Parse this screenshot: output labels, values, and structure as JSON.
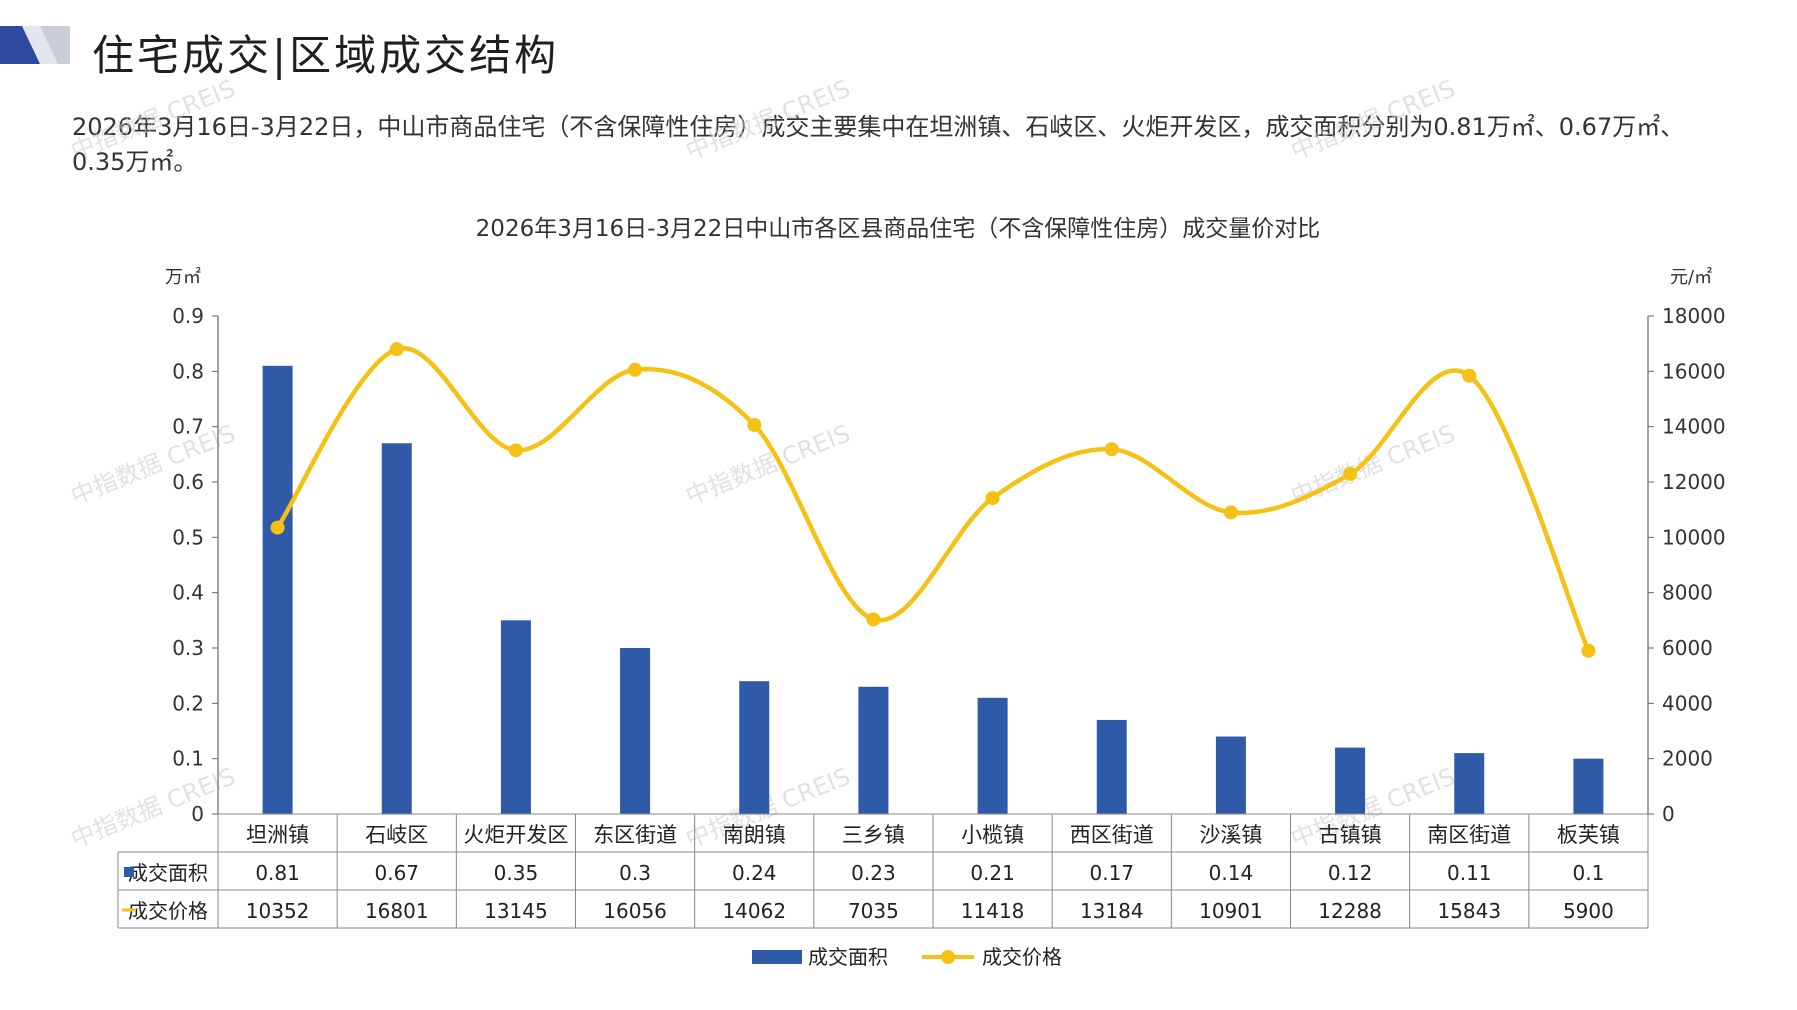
{
  "header": {
    "title": "住宅成交|区域成交结构",
    "accent_color": "#2f4aa0",
    "secondary_color": "#c9cdd6"
  },
  "summary": "2026年3月16日-3月22日，中山市商品住宅（不含保障性住房）成交主要集中在坦洲镇、石岐区、火炬开发区，成交面积分别为0.81万㎡、0.67万㎡、0.35万㎡。",
  "watermark": "中指数据 CREIS",
  "chart_data": {
    "type": "bar",
    "title": "2026年3月16日-3月22日中山市各区县商品住宅（不含保障性住房）成交量价对比",
    "left_unit": "万㎡",
    "right_unit": "元/㎡",
    "ylim_left": [
      0,
      0.9
    ],
    "ylim_right": [
      0,
      18000
    ],
    "left_ticks": [
      "0",
      "0.1",
      "0.2",
      "0.3",
      "0.4",
      "0.5",
      "0.6",
      "0.7",
      "0.8",
      "0.9"
    ],
    "right_ticks": [
      "0",
      "2000",
      "4000",
      "6000",
      "8000",
      "10000",
      "12000",
      "14000",
      "16000",
      "18000"
    ],
    "categories": [
      "坦洲镇",
      "石岐区",
      "火炬开发区",
      "东区街道",
      "南朗镇",
      "三乡镇",
      "小榄镇",
      "西区街道",
      "沙溪镇",
      "古镇镇",
      "南区街道",
      "板芙镇"
    ],
    "series": [
      {
        "name": "成交面积",
        "type": "bar",
        "axis": "left",
        "color": "#2e5aa8",
        "values": [
          0.81,
          0.67,
          0.35,
          0.3,
          0.24,
          0.23,
          0.21,
          0.17,
          0.14,
          0.12,
          0.11,
          0.1
        ],
        "labels": [
          "0.81",
          "0.67",
          "0.35",
          "0.3",
          "0.24",
          "0.23",
          "0.21",
          "0.17",
          "0.14",
          "0.12",
          "0.11",
          "0.1"
        ]
      },
      {
        "name": "成交价格",
        "type": "line",
        "axis": "right",
        "color": "#f5c115",
        "values": [
          10352,
          16801,
          13145,
          16056,
          14062,
          7035,
          11418,
          13184,
          10901,
          12288,
          15843,
          5900
        ],
        "labels": [
          "10352",
          "16801",
          "13145",
          "16056",
          "14062",
          "7035",
          "11418",
          "13184",
          "10901",
          "12288",
          "15843",
          "5900"
        ]
      }
    ],
    "legend_position": "bottom",
    "grid": false
  }
}
